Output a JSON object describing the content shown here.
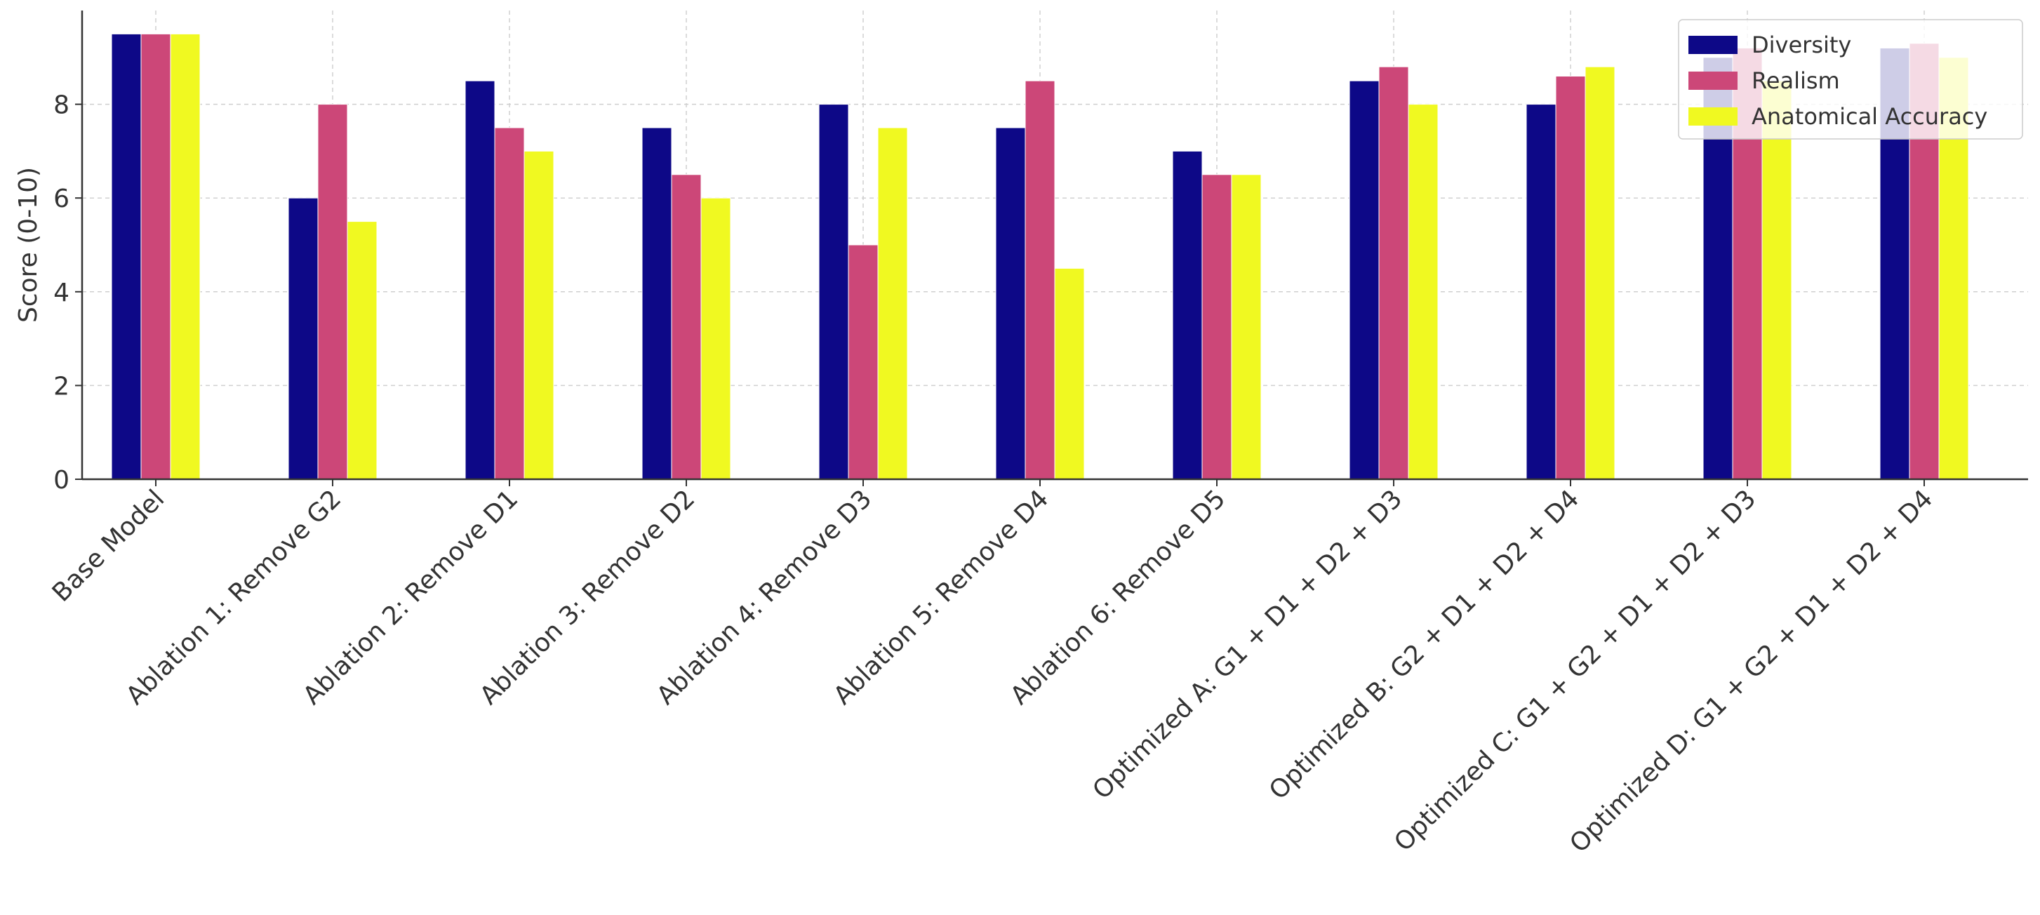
{
  "chart_data": {
    "type": "bar",
    "title": "",
    "xlabel": "",
    "ylabel": "Score (0-10)",
    "ylim": [
      0,
      10
    ],
    "yticks": [
      0,
      2,
      4,
      6,
      8
    ],
    "grid": true,
    "legend_position": "top-right",
    "categories": [
      "Base Model",
      "Ablation 1: Remove G2",
      "Ablation 2: Remove D1",
      "Ablation 3: Remove D2",
      "Ablation 4: Remove D3",
      "Ablation 5: Remove D4",
      "Ablation 6: Remove D5",
      "Optimized A: G1 + D1 + D2 + D3",
      "Optimized B: G2 + D1 + D2 + D4",
      "Optimized C: G1 + G2 + D1 + D2 + D3",
      "Optimized D: G1 + G2 + D1 + D2 + D4"
    ],
    "series": [
      {
        "name": "Diversity",
        "color": "#0d0887",
        "values": [
          9.5,
          6.0,
          8.5,
          7.5,
          8.0,
          7.5,
          7.0,
          8.5,
          8.0,
          9.0,
          9.2
        ]
      },
      {
        "name": "Realism",
        "color": "#cc4778",
        "values": [
          9.5,
          8.0,
          7.5,
          6.5,
          5.0,
          8.5,
          6.5,
          8.8,
          8.6,
          9.2,
          9.3
        ]
      },
      {
        "name": "Anatomical Accuracy",
        "color": "#f0f921",
        "values": [
          9.5,
          5.5,
          7.0,
          6.0,
          7.5,
          4.5,
          6.5,
          8.0,
          8.8,
          8.5,
          9.0
        ]
      }
    ]
  }
}
